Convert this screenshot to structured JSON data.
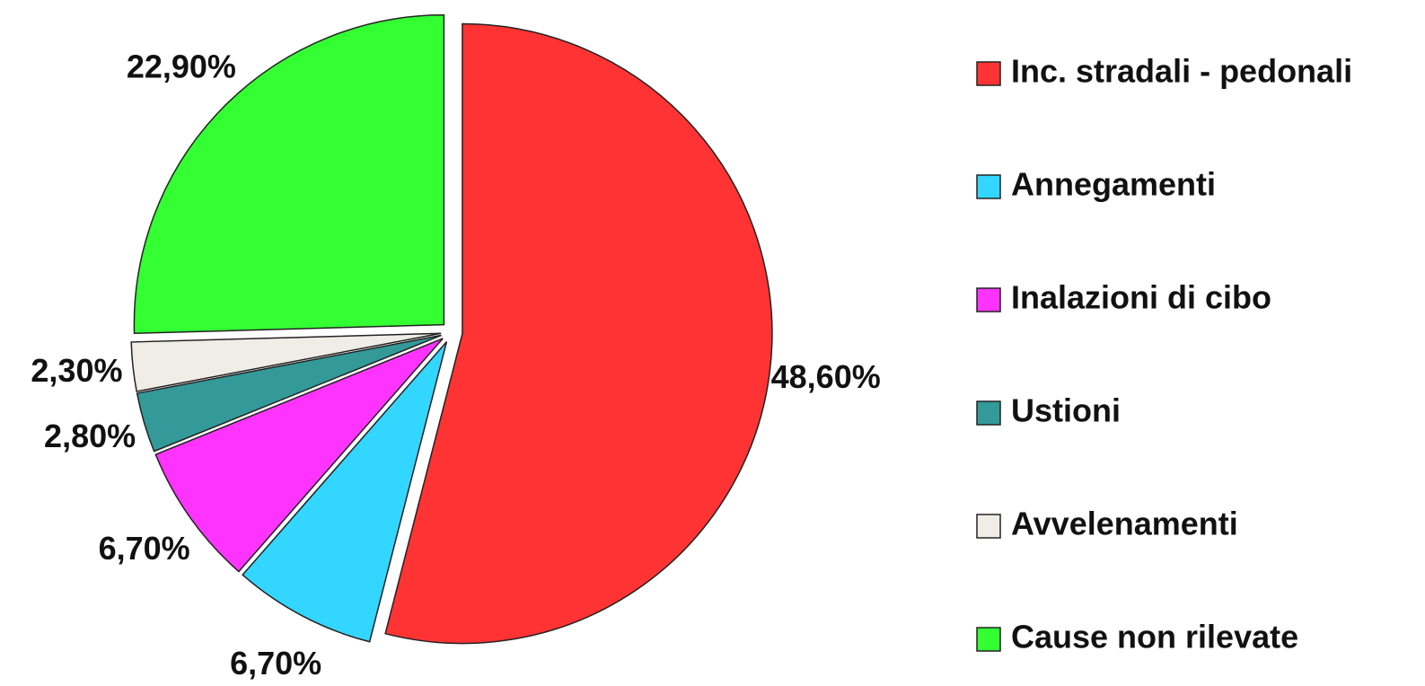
{
  "chart_data": {
    "type": "pie",
    "categories": [
      "Inc. stradali - pedonali",
      "Annegamenti",
      "Inalazioni di cibo",
      "Ustioni",
      "Avvelenamenti",
      "Cause non rilevate"
    ],
    "values": [
      48.6,
      6.7,
      6.7,
      2.8,
      2.3,
      22.9
    ],
    "value_labels": [
      "48,60%",
      "6,70%",
      "6,70%",
      "2,80%",
      "2,30%",
      "22,90%"
    ],
    "colors": [
      "#ff3333",
      "#33d6ff",
      "#ff33ff",
      "#339999",
      "#f0ede6",
      "#33ff33"
    ],
    "legend": "right"
  }
}
